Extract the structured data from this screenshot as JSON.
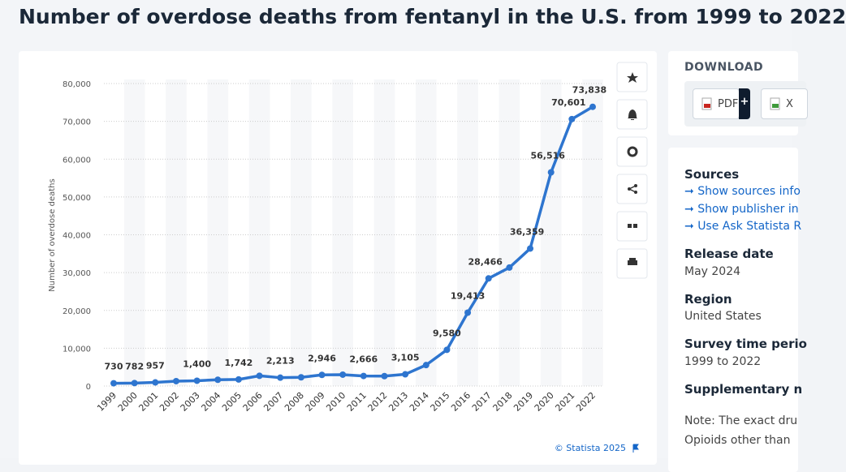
{
  "header": {
    "title": "Number of overdose deaths from fentanyl in the U.S. from 1999 to 2022"
  },
  "chart_data": {
    "type": "line",
    "y_label": "Number of overdose deaths",
    "color": "#2e75cf",
    "grid": true,
    "categories": [
      "1999",
      "2000",
      "2001",
      "2002",
      "2003",
      "2004",
      "2005",
      "2006",
      "2007",
      "2008",
      "2009",
      "2010",
      "2011",
      "2012",
      "2013",
      "2014",
      "2015",
      "2016",
      "2017",
      "2018",
      "2019",
      "2020",
      "2021",
      "2022"
    ],
    "values": [
      730,
      782,
      957,
      1295,
      1400,
      1664,
      1742,
      2707,
      2213,
      2306,
      2946,
      3007,
      2666,
      2628,
      3105,
      5544,
      9580,
      19413,
      28466,
      31335,
      36359,
      56516,
      70601,
      73838
    ],
    "value_labels": [
      "730",
      "782",
      "957",
      null,
      "1,400",
      null,
      "1,742",
      null,
      "2,213",
      null,
      "2,946",
      null,
      "2,666",
      null,
      "3,105",
      null,
      "9,580",
      "19,413",
      "28,466",
      null,
      "36,359",
      "56,516",
      "70,601",
      "73,838"
    ],
    "ylim": [
      0,
      80000
    ],
    "yticks": [
      0,
      {
        "value": 10000,
        "label": "10,000"
      },
      {
        "value": 20000,
        "label": "20,000"
      },
      {
        "value": 30000,
        "label": "30,000"
      },
      {
        "value": 40000,
        "label": "40,000"
      },
      {
        "value": 50000,
        "label": "50,000"
      },
      {
        "value": 60000,
        "label": "60,000"
      },
      {
        "value": 70000,
        "label": "70,000"
      },
      {
        "value": 80000,
        "label": "80,000"
      }
    ],
    "credit": "© Statista 2025"
  },
  "download": {
    "title": "DOWNLOAD",
    "buttons": [
      "PDF",
      "+",
      "X"
    ]
  },
  "info": {
    "sources_title": "Sources",
    "links": [
      "Show sources info",
      "Show publisher in",
      "Use Ask Statista R"
    ],
    "release_title": "Release date",
    "release": "May 2024",
    "region_title": "Region",
    "region": "United States",
    "survey_title": "Survey time perio",
    "survey": "1999 to 2022",
    "supp_title": "Supplementary n",
    "note": [
      "Note: The exact dru",
      "Opioids other than"
    ]
  }
}
